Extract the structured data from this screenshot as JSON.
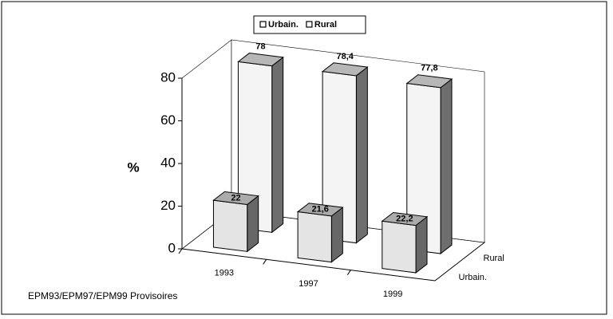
{
  "chart_data": {
    "type": "bar3d",
    "y_label": "%",
    "categories": [
      "1993",
      "1997",
      "1999"
    ],
    "series": [
      {
        "name": "Urbain.",
        "color": "#e4e4e4",
        "values": [
          22,
          21.6,
          22.2
        ],
        "value_labels": [
          "22",
          "21,6",
          "22,2"
        ]
      },
      {
        "name": "Rural",
        "color": "#f4f4f4",
        "values": [
          78,
          78.4,
          77.8
        ],
        "value_labels": [
          "78",
          "78,4",
          "77,8"
        ]
      }
    ],
    "ylim": [
      0,
      80
    ],
    "yticks": [
      0,
      20,
      40,
      60,
      80
    ],
    "legend": "top",
    "footnote": "EPM93/EPM97/EPM99 Provisoires"
  }
}
